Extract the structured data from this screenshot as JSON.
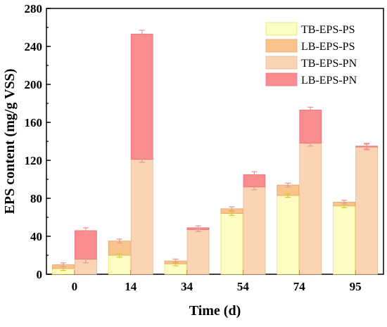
{
  "chart_data": {
    "type": "bar",
    "stacked": true,
    "xlabel": "Time (d)",
    "ylabel": "EPS content (mg/g VSS)",
    "ylim": [
      0,
      280
    ],
    "yticks": [
      "0",
      "40",
      "80",
      "120",
      "160",
      "200",
      "240",
      "280"
    ],
    "categories": [
      "0",
      "14",
      "34",
      "54",
      "74",
      "95"
    ],
    "legend_position": "top-right",
    "grid": false,
    "stacks": [
      {
        "name": "PS",
        "series": [
          {
            "name": "TB-EPS-PS",
            "color": "#fdfcc2",
            "edge": "#e4e36a",
            "values": [
              6,
              20,
              11,
              64,
              83,
              72
            ],
            "errors": [
              2,
              2,
              2,
              2,
              2,
              2
            ]
          },
          {
            "name": "LB-EPS-PS",
            "color": "#f9c48c",
            "edge": "#e3a56a",
            "values": [
              4,
              15,
              3,
              5,
              11,
              4
            ],
            "errors": [
              2,
              2,
              2,
              2,
              2,
              2
            ]
          }
        ]
      },
      {
        "name": "PN",
        "series": [
          {
            "name": "TB-EPS-PN",
            "color": "#fbd4b3",
            "edge": "#e6b592",
            "values": [
              16,
              121,
              47,
              92,
              138,
              134
            ],
            "errors": [
              4,
              3,
              2,
              3,
              3,
              3
            ]
          },
          {
            "name": "LB-EPS-PN",
            "color": "#fa8b8f",
            "edge": "#e67378",
            "values": [
              30,
              132,
              2,
              13,
              35,
              1
            ],
            "errors": [
              3,
              4,
              2,
              3,
              3,
              3
            ]
          }
        ]
      }
    ],
    "error_bar_color": "#e89a9a",
    "error_bar_color_ps": "#d8d020"
  }
}
